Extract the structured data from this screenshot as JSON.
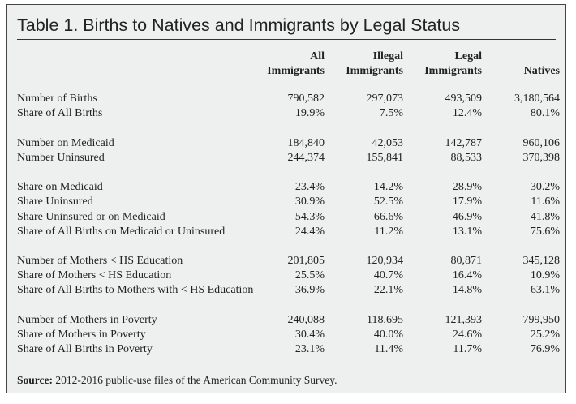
{
  "title": "Table 1. Births to Natives and Immigrants by Legal Status",
  "columns": [
    {
      "line1": "All",
      "line2": "Immigrants"
    },
    {
      "line1": "Illegal",
      "line2": "Immigrants"
    },
    {
      "line1": "Legal",
      "line2": "Immigrants"
    },
    {
      "line1": "",
      "line2": "Natives"
    }
  ],
  "groups": [
    [
      {
        "label": "Number of Births",
        "values": [
          "790,582",
          "297,073",
          "493,509",
          "3,180,564"
        ]
      },
      {
        "label": "Share of All Births",
        "values": [
          "19.9%",
          "7.5%",
          "12.4%",
          "80.1%"
        ]
      }
    ],
    [
      {
        "label": "Number on Medicaid",
        "values": [
          "184,840",
          "42,053",
          "142,787",
          "960,106"
        ]
      },
      {
        "label": "Number Uninsured",
        "values": [
          "244,374",
          "155,841",
          "88,533",
          "370,398"
        ]
      }
    ],
    [
      {
        "label": "Share on Medicaid",
        "values": [
          "23.4%",
          "14.2%",
          "28.9%",
          "30.2%"
        ]
      },
      {
        "label": "Share Uninsured",
        "values": [
          "30.9%",
          "52.5%",
          "17.9%",
          "11.6%"
        ]
      },
      {
        "label": "Share Uninsured or on Medicaid",
        "values": [
          "54.3%",
          "66.6%",
          "46.9%",
          "41.8%"
        ]
      },
      {
        "label": "Share of All Births on Medicaid or Uninsured",
        "values": [
          "24.4%",
          "11.2%",
          "13.1%",
          "75.6%"
        ]
      }
    ],
    [
      {
        "label": "Number of Mothers < HS Education",
        "values": [
          "201,805",
          "120,934",
          "80,871",
          "345,128"
        ]
      },
      {
        "label": "Share of Mothers < HS Education",
        "values": [
          "25.5%",
          "40.7%",
          "16.4%",
          "10.9%"
        ]
      },
      {
        "label": "Share of All Births to Mothers with < HS Education",
        "values": [
          "36.9%",
          "22.1%",
          "14.8%",
          "63.1%"
        ]
      }
    ],
    [
      {
        "label": "Number of Mothers in Poverty",
        "values": [
          "240,088",
          "118,695",
          "121,393",
          "799,950"
        ]
      },
      {
        "label": "Share of Mothers in Poverty",
        "values": [
          "30.4%",
          "40.0%",
          "24.6%",
          "25.2%"
        ]
      },
      {
        "label": "Share of All Births in Poverty",
        "values": [
          "23.1%",
          "11.4%",
          "11.7%",
          "76.9%"
        ]
      }
    ]
  ],
  "source": {
    "label": "Source:",
    "text": " 2012-2016 public-use files of the American Community Survey."
  }
}
